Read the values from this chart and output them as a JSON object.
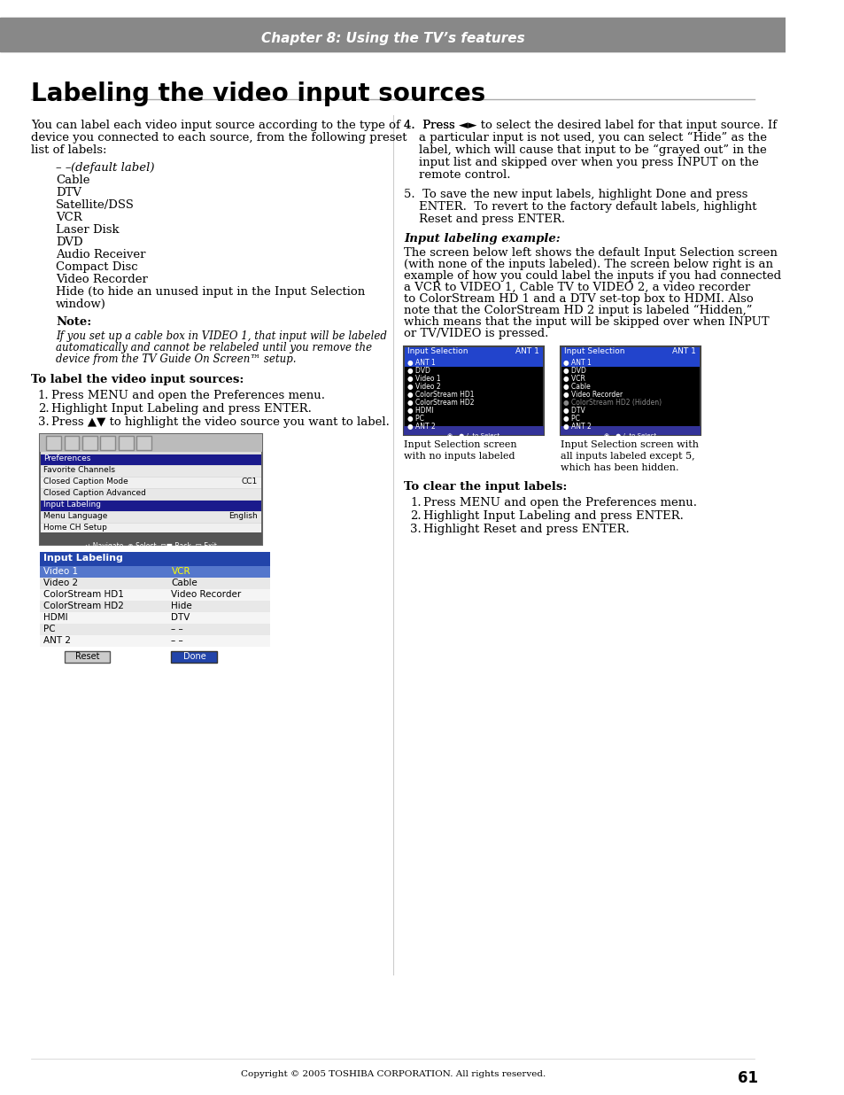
{
  "page_bg": "#ffffff",
  "header_bg": "#888888",
  "header_text": "Chapter 8: Using the TV’s features",
  "header_text_color": "#ffffff",
  "title": "Labeling the video input sources",
  "title_color": "#000000",
  "body_col1": [
    "You can label each video input source according to the type of",
    "device you connected to each source, from the following preset",
    "list of labels:"
  ],
  "labels_list": [
    "– – (default label)",
    "Cable",
    "DTV",
    "Satellite/DSS",
    "VCR",
    "Laser Disk",
    "DVD",
    "Audio Receiver",
    "Compact Disc",
    "Video Recorder",
    "Hide (to hide an unused input in the Input Selection",
    "window)"
  ],
  "note_bold": "Note:",
  "note_italic": "If you set up a cable box in VIDEO 1, that input will be labeled automatically and cannot be relabeled until you remove the device from the TV Guide On Screen™ setup.",
  "section1_title": "To label the video input sources:",
  "section1_steps": [
    "Press MENU and open the Preferences menu.",
    "Highlight Input Labeling and press ENTER.",
    "Press ▲▼ to highlight the video source you want to label."
  ],
  "body_col2_para4": "Press ◄► to select the desired label for that input source. If a particular input is not used, you can select “Hide” as the label, which will cause that input to be “grayed out” in the input list and skipped over when you press INPUT on the remote control.",
  "body_col2_para5": "To save the new input labels, highlight Done and press ENTER.  To revert to the factory default labels, highlight Reset and press ENTER.",
  "input_labeling_example_title": "Input labeling example:",
  "example_text": "The screen below left shows the default Input Selection screen (with none of the inputs labeled). The screen below right is an example of how you could label the inputs if you had connected a VCR to VIDEO 1, Cable TV to VIDEO 2, a video recorder to ColorStream HD 1 and a DTV set-top box to HDMI. Also note that the ColorStream HD 2 input is labeled “Hidden,” which means that the input will be skipped over when INPUT or TV/VIDEO is pressed.",
  "screen_left_caption": "Input Selection screen\nwith no inputs labeled",
  "screen_right_caption": "Input Selection screen with\nall inputs labeled except 5,\nwhich has been hidden.",
  "section2_title": "To clear the input labels:",
  "section2_steps": [
    "Press MENU and open the Preferences menu.",
    "Highlight Input Labeling and press ENTER.",
    "Highlight Reset and press ENTER."
  ],
  "footer_text": "Copyright © 2005 TOSHIBA CORPORATION. All rights reserved.",
  "page_number": "61"
}
